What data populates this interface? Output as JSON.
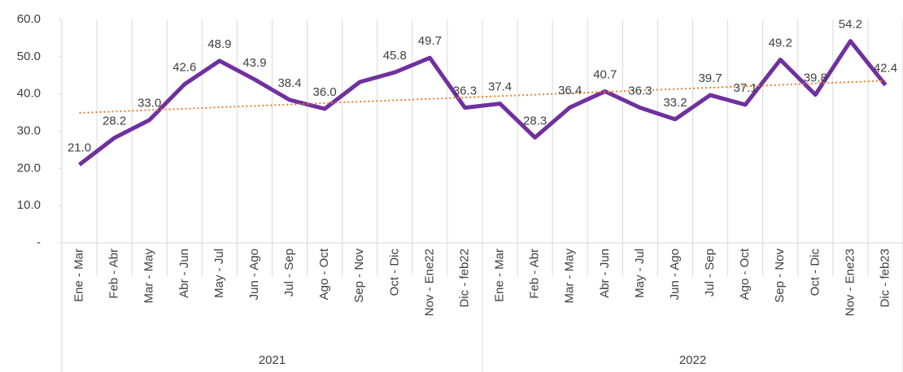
{
  "chart_data": {
    "type": "line",
    "categories": [
      "Ene - Mar",
      "Feb - Abr",
      "Mar - May",
      "Abr - Jun",
      "May - Jul",
      "Jun - Ago",
      "Jul - Sep",
      "Ago - Oct",
      "Sep - Nov",
      "Oct - Dic",
      "Nov - Ene22",
      "Dic - feb22",
      "Ene - Mar",
      "Feb - Abr",
      "Mar - May",
      "Abr - Jun",
      "May - Jul",
      "Jun - Ago",
      "Jul - Sep",
      "Ago - Oct",
      "Sep - Nov",
      "Oct - Dic",
      "Nov - Ene23",
      "Dic - feb23"
    ],
    "groups": [
      {
        "label": "2021",
        "count": 12
      },
      {
        "label": "2022",
        "count": 12
      }
    ],
    "values": [
      21.0,
      28.2,
      33.0,
      42.6,
      48.9,
      43.9,
      38.4,
      36.0,
      43.2,
      45.8,
      49.7,
      36.3,
      37.4,
      28.3,
      36.4,
      40.7,
      36.3,
      33.2,
      39.7,
      37.1,
      49.2,
      39.8,
      54.2,
      42.4
    ],
    "value_labels": [
      "21.0",
      "28.2",
      "33.0",
      "42.6",
      "48.9",
      "43.9",
      "38.4",
      "36.0",
      null,
      "45.8",
      "49.7",
      "36.3",
      "37.4",
      "28.3",
      "36.4",
      "40.7",
      "36.3",
      "33.2",
      "39.7",
      "37.1",
      "49.2",
      "39.8",
      "54.2",
      "42.4"
    ],
    "color": "#7030a0",
    "trendline": true,
    "trendline_color": "#ed7d31",
    "ylim": [
      0,
      60
    ],
    "yticks": [
      {
        "value": 0,
        "label": "-"
      },
      {
        "value": 10,
        "label": "10.0"
      },
      {
        "value": 20,
        "label": "20.0"
      },
      {
        "value": 30,
        "label": "30.0"
      },
      {
        "value": 40,
        "label": "40.0"
      },
      {
        "value": 50,
        "label": "50.0"
      },
      {
        "value": 60,
        "label": "60.0"
      }
    ],
    "grid": true
  }
}
